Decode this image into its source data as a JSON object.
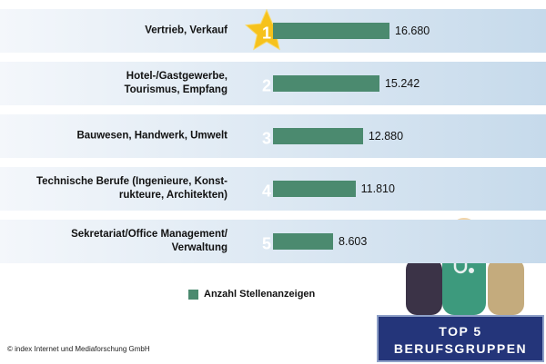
{
  "chart_data": {
    "type": "bar",
    "categories": [
      "Vertrieb, Verkauf",
      "Hotel-/Gastgewerbe,\nTourismus, Empfang",
      "Bauwesen, Handwerk, Umwelt",
      "Technische Berufe (Ingenieure, Konst-\nrukteure, Architekten)",
      "Sekretariat/Office Management/\nVerwaltung"
    ],
    "ranks": [
      1,
      2,
      3,
      4,
      5
    ],
    "series": [
      {
        "name": "Anzahl Stellenanzeigen",
        "color": "#4b8a6f",
        "values": [
          16680,
          15242,
          12880,
          11810,
          8603
        ],
        "value_labels": [
          "16.680",
          "15.242",
          "12.880",
          "11.810",
          "8.603"
        ]
      }
    ],
    "badge": [
      "TOP 5",
      "BERUFSGRUPPEN"
    ],
    "source": "© index Internet und Mediaforschung GmbH"
  }
}
